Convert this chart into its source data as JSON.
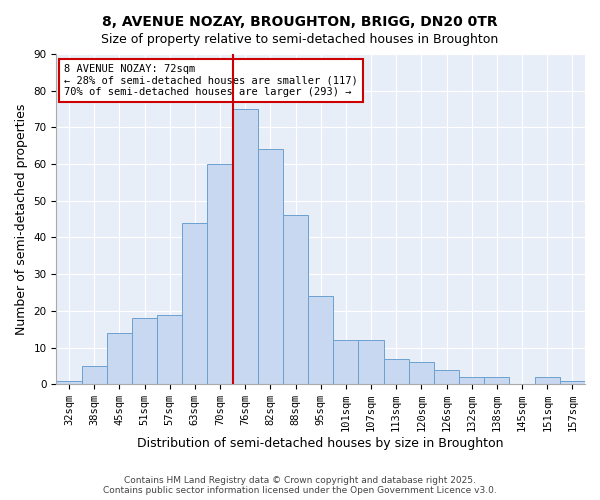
{
  "title": "8, AVENUE NOZAY, BROUGHTON, BRIGG, DN20 0TR",
  "subtitle": "Size of property relative to semi-detached houses in Broughton",
  "xlabel": "Distribution of semi-detached houses by size in Broughton",
  "ylabel": "Number of semi-detached properties",
  "bar_labels": [
    "32sqm",
    "38sqm",
    "45sqm",
    "51sqm",
    "57sqm",
    "63sqm",
    "70sqm",
    "76sqm",
    "82sqm",
    "88sqm",
    "95sqm",
    "101sqm",
    "107sqm",
    "113sqm",
    "120sqm",
    "126sqm",
    "132sqm",
    "138sqm",
    "145sqm",
    "151sqm",
    "157sqm"
  ],
  "bar_heights": [
    1,
    5,
    14,
    18,
    19,
    44,
    60,
    75,
    64,
    46,
    24,
    12,
    12,
    7,
    6,
    4,
    2,
    2,
    0,
    2,
    1
  ],
  "bar_color": "#c8d8f0",
  "bar_edge_color": "#6aa0d0",
  "vline_color": "#cc0000",
  "annotation_title": "8 AVENUE NOZAY: 72sqm",
  "annotation_line1": "← 28% of semi-detached houses are smaller (117)",
  "annotation_line2": "70% of semi-detached houses are larger (293) →",
  "annotation_box_edge": "#cc0000",
  "ylim": [
    0,
    90
  ],
  "yticks": [
    0,
    10,
    20,
    30,
    40,
    50,
    60,
    70,
    80,
    90
  ],
  "footer1": "Contains HM Land Registry data © Crown copyright and database right 2025.",
  "footer2": "Contains public sector information licensed under the Open Government Licence v3.0.",
  "bg_color": "#ffffff",
  "plot_bg_color": "#e8eef8",
  "title_fontsize": 10,
  "axis_label_fontsize": 9,
  "tick_fontsize": 7.5,
  "footer_fontsize": 6.5,
  "grid_color": "#ffffff"
}
